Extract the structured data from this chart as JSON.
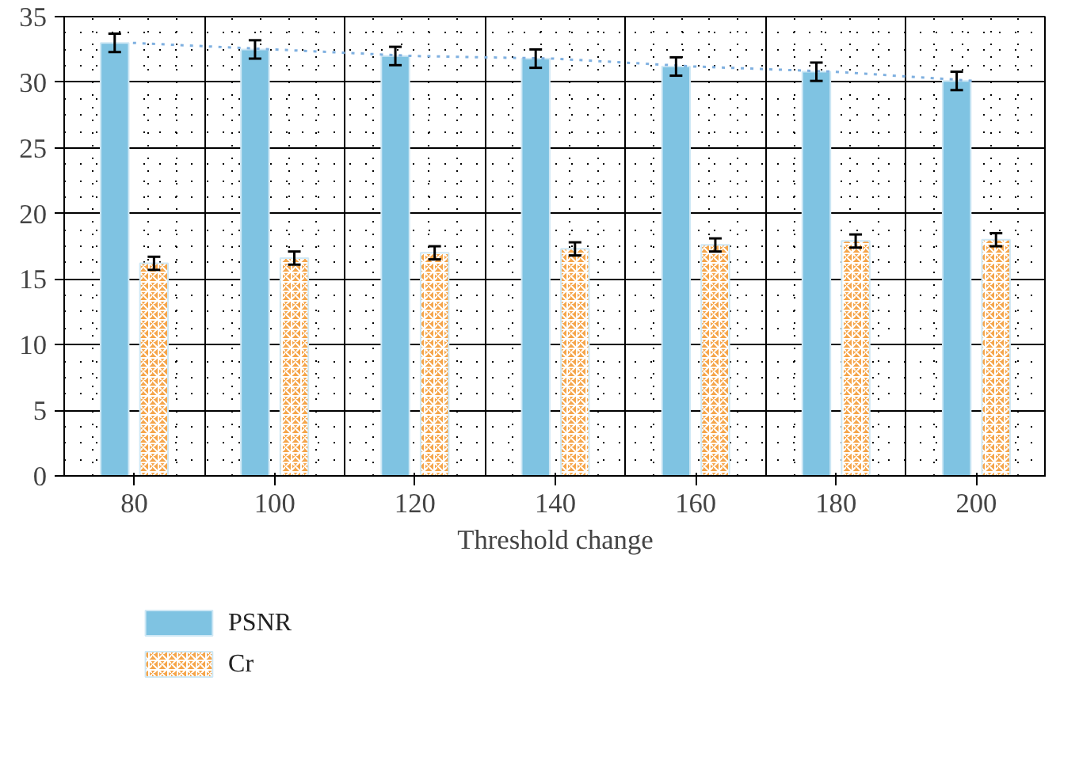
{
  "chart_data": {
    "type": "bar",
    "xlabel": "Threshold change",
    "categories": [
      "80",
      "100",
      "120",
      "140",
      "160",
      "180",
      "200"
    ],
    "series": [
      {
        "name": "PSNR",
        "color": "#7fc3e2",
        "values": [
          33.0,
          32.5,
          32.0,
          31.8,
          31.2,
          30.8,
          30.1
        ],
        "errors": [
          0.7,
          0.7,
          0.7,
          0.7,
          0.7,
          0.7,
          0.7
        ]
      },
      {
        "name": "Cr",
        "color": "#f5a54a",
        "values": [
          16.2,
          16.6,
          17.0,
          17.3,
          17.6,
          17.9,
          18.0
        ],
        "errors": [
          0.5,
          0.5,
          0.5,
          0.5,
          0.5,
          0.5,
          0.5
        ]
      },
      {
        "type": "line",
        "color": "#7fb0e0",
        "line_style": "dotted",
        "values": [
          33.0,
          32.5,
          32.0,
          31.8,
          31.2,
          30.8,
          30.1
        ]
      }
    ],
    "ylim": [
      0,
      35
    ],
    "yticks": [
      0,
      5,
      10,
      15,
      20,
      25,
      30,
      35
    ],
    "grid": true,
    "legend": "bottom left"
  }
}
